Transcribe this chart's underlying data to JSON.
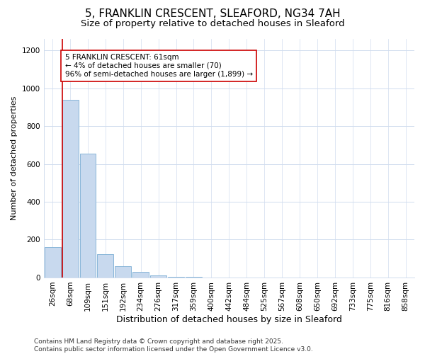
{
  "title": "5, FRANKLIN CRESCENT, SLEAFORD, NG34 7AH",
  "subtitle": "Size of property relative to detached houses in Sleaford",
  "xlabel": "Distribution of detached houses by size in Sleaford",
  "ylabel": "Number of detached properties",
  "bin_labels": [
    "26sqm",
    "68sqm",
    "109sqm",
    "151sqm",
    "192sqm",
    "234sqm",
    "276sqm",
    "317sqm",
    "359sqm",
    "400sqm",
    "442sqm",
    "484sqm",
    "525sqm",
    "567sqm",
    "608sqm",
    "650sqm",
    "692sqm",
    "733sqm",
    "775sqm",
    "816sqm",
    "858sqm"
  ],
  "bar_values": [
    160,
    940,
    655,
    125,
    60,
    28,
    10,
    5,
    2,
    1,
    1,
    1,
    0,
    0,
    0,
    0,
    0,
    0,
    0,
    0,
    0
  ],
  "bar_color": "#c8d9ee",
  "bar_edgecolor": "#7aadd4",
  "grid_color": "#d0dcee",
  "vline_x_index": 1,
  "vline_color": "#cc0000",
  "annotation_text": "5 FRANKLIN CRESCENT: 61sqm\n← 4% of detached houses are smaller (70)\n96% of semi-detached houses are larger (1,899) →",
  "annotation_box_facecolor": "white",
  "annotation_box_edgecolor": "#cc0000",
  "footnote": "Contains HM Land Registry data © Crown copyright and database right 2025.\nContains public sector information licensed under the Open Government Licence v3.0.",
  "ylim": [
    0,
    1260
  ],
  "yticks": [
    0,
    200,
    400,
    600,
    800,
    1000,
    1200
  ],
  "title_fontsize": 11,
  "subtitle_fontsize": 9.5,
  "ylabel_fontsize": 8,
  "xlabel_fontsize": 9,
  "tick_fontsize": 7.5,
  "annotation_fontsize": 7.5,
  "footnote_fontsize": 6.5,
  "background_color": "#ffffff"
}
